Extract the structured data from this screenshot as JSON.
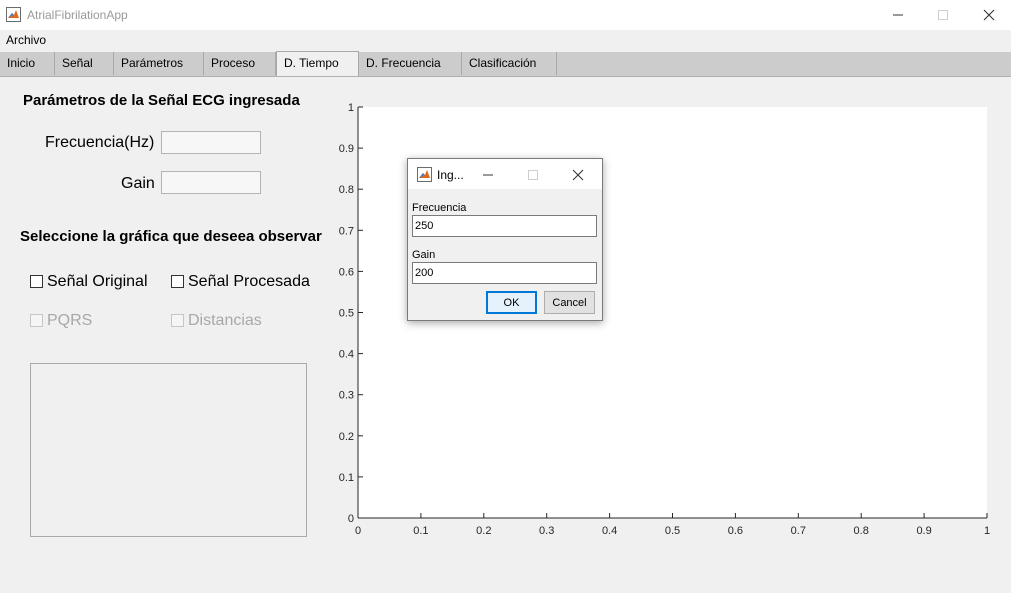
{
  "window": {
    "title": "AtrialFibrilationApp"
  },
  "menu": {
    "items": [
      "Archivo"
    ]
  },
  "tabs": [
    {
      "label": "Inicio",
      "active": false
    },
    {
      "label": "Señal",
      "active": false
    },
    {
      "label": "Parámetros",
      "active": false
    },
    {
      "label": "Proceso",
      "active": false
    },
    {
      "label": "D. Tiempo",
      "active": true
    },
    {
      "label": "D. Frecuencia",
      "active": false
    },
    {
      "label": "Clasificación",
      "active": false
    }
  ],
  "left_panel": {
    "heading": "Parámetros de la Señal ECG ingresada",
    "frecuencia_label": "Frecuencia(Hz)",
    "frecuencia_value": "",
    "gain_label": "Gain",
    "gain_value": "",
    "select_heading": "Seleccione la gráfica que deseea observar",
    "checkboxes": [
      {
        "label": "Señal Original",
        "checked": false,
        "enabled": true
      },
      {
        "label": "Señal Procesada",
        "checked": false,
        "enabled": true
      },
      {
        "label": "PQRS",
        "checked": false,
        "enabled": false
      },
      {
        "label": "Distancias",
        "checked": false,
        "enabled": false
      }
    ]
  },
  "chart_data": {
    "type": "line",
    "series": [],
    "xlim": [
      0,
      1
    ],
    "ylim": [
      0,
      1
    ],
    "x_ticks": [
      "0",
      "0.1",
      "0.2",
      "0.3",
      "0.4",
      "0.5",
      "0.6",
      "0.7",
      "0.8",
      "0.9",
      "1"
    ],
    "y_ticks": [
      "0",
      "0.1",
      "0.2",
      "0.3",
      "0.4",
      "0.5",
      "0.6",
      "0.7",
      "0.8",
      "0.9",
      "1"
    ],
    "grid": false
  },
  "dialog": {
    "title": "Ing...",
    "frecuencia_label": "Frecuencia",
    "frecuencia_value": "250",
    "gain_label": "Gain",
    "gain_value": "200",
    "ok_label": "OK",
    "cancel_label": "Cancel"
  },
  "colors": {
    "window_bg": "#f0f0f0",
    "tab_strip": "#cccccc",
    "focus_accent": "#0078d7",
    "disabled_text": "#a8a8a8"
  }
}
